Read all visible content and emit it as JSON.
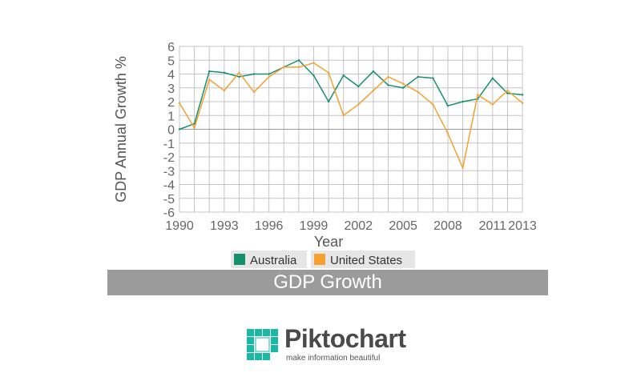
{
  "chart_data": {
    "type": "line",
    "title": "GDP Growth",
    "xlabel": "Year",
    "ylabel": "GDP Annual Growth %",
    "x": [
      1990,
      1991,
      1992,
      1993,
      1994,
      1995,
      1996,
      1997,
      1998,
      1999,
      2000,
      2001,
      2002,
      2003,
      2004,
      2005,
      2006,
      2007,
      2008,
      2009,
      2010,
      2011,
      2012,
      2013
    ],
    "x_ticks": [
      1990,
      1993,
      1996,
      1999,
      2002,
      2005,
      2008,
      2011,
      2013
    ],
    "xlim": [
      1990,
      2013
    ],
    "ylim": [
      -6,
      6
    ],
    "y_ticks": [
      -6,
      -5,
      -4,
      -3,
      -2,
      -1,
      0,
      1,
      2,
      3,
      4,
      5,
      6
    ],
    "grid": true,
    "legend_position": "bottom",
    "series": [
      {
        "name": "Australia",
        "color": "#14906f",
        "values": [
          0.0,
          0.4,
          4.2,
          4.1,
          3.8,
          4.0,
          4.0,
          4.5,
          5.0,
          3.9,
          2.0,
          3.9,
          3.1,
          4.2,
          3.2,
          3.0,
          3.8,
          3.7,
          1.7,
          2.0,
          2.2,
          3.7,
          2.6,
          2.5
        ]
      },
      {
        "name": "United States",
        "color": "#f5a130",
        "values": [
          1.9,
          0.1,
          3.6,
          2.8,
          4.1,
          2.7,
          3.8,
          4.5,
          4.5,
          4.8,
          4.1,
          1.0,
          1.8,
          2.8,
          3.8,
          3.3,
          2.7,
          1.8,
          -0.3,
          -2.8,
          2.5,
          1.8,
          2.8,
          1.9
        ]
      }
    ]
  },
  "branding": {
    "name": "Piktochart",
    "tagline": "make information beautiful",
    "color": "#1ab9a5"
  }
}
